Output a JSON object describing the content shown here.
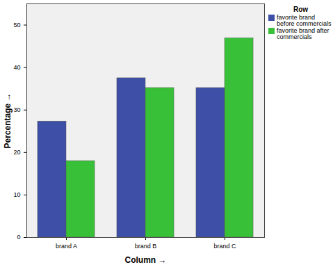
{
  "chart_data": {
    "type": "bar",
    "categories": [
      "brand A",
      "brand B",
      "brand C"
    ],
    "series": [
      {
        "name": "favorite brand before commercials",
        "color": "#3d4fa6",
        "values": [
          27.3,
          37.5,
          35.2
        ]
      },
      {
        "name": "favorite brand after commercials",
        "color": "#39c039",
        "values": [
          18.0,
          35.2,
          46.9
        ]
      }
    ],
    "x_label": "Column",
    "y_label": "Percentage",
    "legend_title": "Row",
    "legend": "right",
    "ylim": [
      0,
      55
    ],
    "yticks": [
      0,
      10,
      20,
      30,
      40,
      50
    ],
    "grid": false
  }
}
